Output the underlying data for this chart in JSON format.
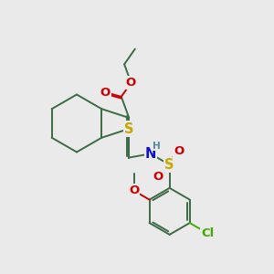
{
  "bg_color": "#eaeaea",
  "bond_color": "#3d6b45",
  "bond_width": 1.4,
  "atom_colors": {
    "S_thio": "#c8a800",
    "S_sulf": "#c8a800",
    "N": "#1010cc",
    "O": "#cc0000",
    "Cl": "#44aa00",
    "H": "#558899",
    "C": "#3d6b45"
  },
  "fs": 9.5,
  "fs_small": 7.5
}
